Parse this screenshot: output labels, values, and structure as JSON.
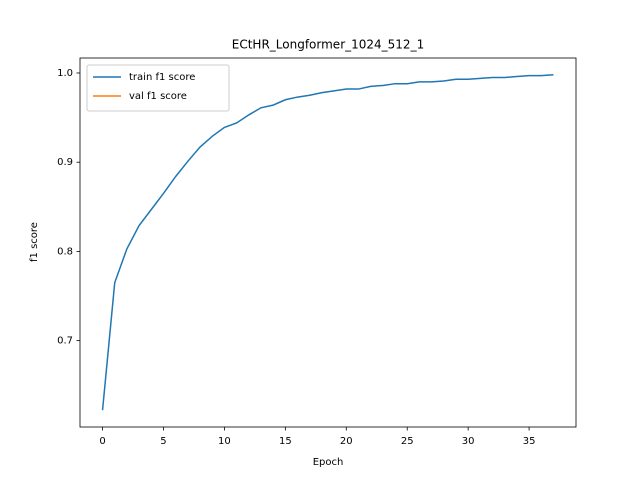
{
  "chart_data": {
    "type": "line",
    "title": "ECtHR_Longformer_1024_512_1",
    "x_label": "Epoch",
    "y_label": "f1 score",
    "x": [
      0,
      1,
      2,
      3,
      4,
      5,
      6,
      7,
      8,
      9,
      10,
      11,
      12,
      13,
      14,
      15,
      16,
      17,
      18,
      19,
      20,
      21,
      22,
      23,
      24,
      25,
      26,
      27,
      28,
      29,
      30,
      31,
      32,
      33,
      34,
      35,
      36,
      37
    ],
    "series": [
      {
        "name": "train f1 score",
        "color": "#1f77b4",
        "values": [
          0.622,
          0.765,
          0.803,
          0.829,
          0.847,
          0.865,
          0.884,
          0.901,
          0.917,
          0.929,
          0.939,
          0.944,
          0.953,
          0.961,
          0.964,
          0.97,
          0.973,
          0.975,
          0.978,
          0.98,
          0.982,
          0.982,
          0.985,
          0.986,
          0.988,
          0.988,
          0.99,
          0.99,
          0.991,
          0.993,
          0.993,
          0.994,
          0.995,
          0.995,
          0.996,
          0.997,
          0.997,
          0.998
        ]
      },
      {
        "name": "val f1 score",
        "color": "#ff7f0e",
        "values": [
          null,
          null,
          null,
          null,
          null,
          null,
          null,
          null,
          null,
          null,
          null,
          null,
          null,
          null,
          null,
          null,
          null,
          null,
          null,
          null,
          null,
          null,
          null,
          null,
          null,
          null,
          null,
          null,
          null,
          null,
          null,
          null,
          null,
          null,
          null,
          null,
          null,
          null
        ]
      }
    ],
    "xlim": [
      -1.85,
      38.85
    ],
    "xticks": [
      0,
      5,
      10,
      15,
      20,
      25,
      30,
      35
    ],
    "ylim": [
      0.6032,
      1.0168
    ],
    "yticks": [
      0.7,
      0.8,
      0.9,
      {
        "value": 1,
        "label": "1.0"
      }
    ],
    "legend": "upper left",
    "grid": false
  }
}
